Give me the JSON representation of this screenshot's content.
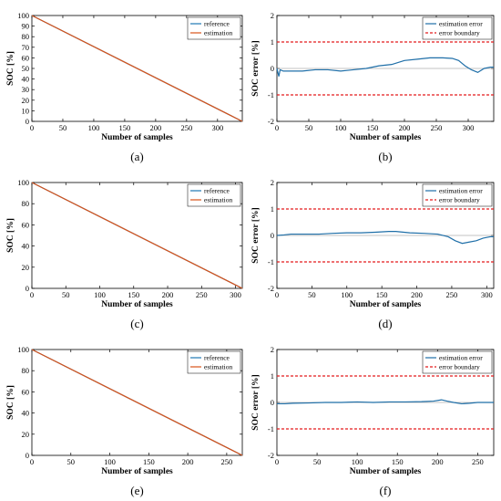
{
  "colors": {
    "reference": "#1f77b4",
    "estimation": "#d95319",
    "error": "#1f6fa8",
    "boundary": "#e31a1c"
  },
  "chart_data": [
    {
      "type": "line",
      "panel_label": "(a)",
      "xlabel": "Number of samples",
      "ylabel": "SOC [%]",
      "xlim": [
        0,
        340
      ],
      "ylim": [
        0,
        100
      ],
      "xticks": [
        0,
        50,
        100,
        150,
        200,
        250,
        300
      ],
      "yticks": [
        0,
        10,
        20,
        30,
        40,
        50,
        60,
        70,
        80,
        90,
        100
      ],
      "legend_position": "top-right",
      "series": [
        {
          "name": "reference",
          "color_key": "reference",
          "x": [
            0,
            340
          ],
          "y": [
            100,
            0
          ]
        },
        {
          "name": "estimation",
          "color_key": "estimation",
          "x": [
            0,
            340
          ],
          "y": [
            100,
            0
          ]
        }
      ]
    },
    {
      "type": "line",
      "panel_label": "(b)",
      "xlabel": "Number of samples",
      "ylabel": "SOC error [%]",
      "xlim": [
        0,
        340
      ],
      "ylim": [
        -2,
        2
      ],
      "xticks": [
        0,
        50,
        100,
        150,
        200,
        250,
        300
      ],
      "yticks": [
        -2,
        -1,
        0,
        1,
        2
      ],
      "legend_position": "top-right",
      "series": [
        {
          "name": "estimation error",
          "color_key": "error",
          "x": [
            0,
            3,
            5,
            10,
            20,
            40,
            60,
            80,
            100,
            120,
            140,
            160,
            180,
            200,
            220,
            240,
            260,
            275,
            285,
            295,
            305,
            315,
            325,
            335,
            340
          ],
          "y": [
            0,
            -0.3,
            -0.05,
            -0.1,
            -0.1,
            -0.1,
            -0.05,
            -0.05,
            -0.1,
            -0.05,
            0,
            0.1,
            0.15,
            0.3,
            0.35,
            0.4,
            0.4,
            0.38,
            0.3,
            0.1,
            -0.05,
            -0.15,
            0,
            0.05,
            0.05
          ]
        },
        {
          "name": "error boundary",
          "color_key": "boundary",
          "dashed": true,
          "x": [
            0,
            340
          ],
          "y": [
            1,
            1
          ]
        },
        {
          "name": "error boundary",
          "color_key": "boundary",
          "dashed": true,
          "x": [
            0,
            340
          ],
          "y": [
            -1,
            -1
          ]
        }
      ]
    },
    {
      "type": "line",
      "panel_label": "(c)",
      "xlabel": "Number of samples",
      "ylabel": "SOC [%]",
      "xlim": [
        0,
        310
      ],
      "ylim": [
        0,
        100
      ],
      "xticks": [
        0,
        50,
        100,
        150,
        200,
        250,
        300
      ],
      "yticks": [
        0,
        20,
        40,
        60,
        80,
        100
      ],
      "legend_position": "top-right",
      "series": [
        {
          "name": "reference",
          "color_key": "reference",
          "x": [
            0,
            310
          ],
          "y": [
            100,
            0
          ]
        },
        {
          "name": "estimation",
          "color_key": "estimation",
          "x": [
            0,
            310
          ],
          "y": [
            100,
            0
          ]
        }
      ]
    },
    {
      "type": "line",
      "panel_label": "(d)",
      "xlabel": "Number of samples",
      "ylabel": "SOC error [%]",
      "xlim": [
        0,
        310
      ],
      "ylim": [
        -2,
        2
      ],
      "xticks": [
        0,
        50,
        100,
        150,
        200,
        250,
        300
      ],
      "yticks": [
        -2,
        -1,
        0,
        1,
        2
      ],
      "legend_position": "top-right",
      "series": [
        {
          "name": "estimation error",
          "color_key": "error",
          "x": [
            0,
            10,
            20,
            40,
            60,
            80,
            100,
            120,
            140,
            160,
            170,
            190,
            210,
            230,
            245,
            255,
            265,
            275,
            285,
            295,
            305,
            310
          ],
          "y": [
            0,
            0.02,
            0.05,
            0.05,
            0.05,
            0.08,
            0.1,
            0.1,
            0.12,
            0.15,
            0.15,
            0.1,
            0.08,
            0.05,
            -0.05,
            -0.2,
            -0.3,
            -0.25,
            -0.2,
            -0.1,
            -0.05,
            -0.05
          ]
        },
        {
          "name": "error boundary",
          "color_key": "boundary",
          "dashed": true,
          "x": [
            0,
            310
          ],
          "y": [
            1,
            1
          ]
        },
        {
          "name": "error boundary",
          "color_key": "boundary",
          "dashed": true,
          "x": [
            0,
            310
          ],
          "y": [
            -1,
            -1
          ]
        }
      ]
    },
    {
      "type": "line",
      "panel_label": "(e)",
      "xlabel": "Number of samples",
      "ylabel": "SOC [%]",
      "xlim": [
        0,
        270
      ],
      "ylim": [
        0,
        100
      ],
      "xticks": [
        0,
        50,
        100,
        150,
        200,
        250
      ],
      "yticks": [
        0,
        20,
        40,
        60,
        80,
        100
      ],
      "legend_position": "top-right",
      "series": [
        {
          "name": "reference",
          "color_key": "reference",
          "x": [
            0,
            270
          ],
          "y": [
            100,
            0
          ]
        },
        {
          "name": "estimation",
          "color_key": "estimation",
          "x": [
            0,
            270
          ],
          "y": [
            100,
            0
          ]
        }
      ]
    },
    {
      "type": "line",
      "panel_label": "(f)",
      "xlabel": "Number of samples",
      "ylabel": "SOC error [%]",
      "xlim": [
        0,
        270
      ],
      "ylim": [
        -2,
        2
      ],
      "xticks": [
        0,
        50,
        100,
        150,
        200,
        250
      ],
      "yticks": [
        -2,
        -1,
        0,
        1,
        2
      ],
      "legend_position": "top-right",
      "series": [
        {
          "name": "estimation error",
          "color_key": "error",
          "x": [
            0,
            10,
            20,
            40,
            60,
            80,
            100,
            120,
            140,
            160,
            180,
            195,
            205,
            212,
            220,
            230,
            240,
            250,
            260,
            270
          ],
          "y": [
            -0.05,
            -0.05,
            -0.03,
            -0.02,
            0,
            0,
            0.02,
            0,
            0.02,
            0.02,
            0.03,
            0.05,
            0.1,
            0.05,
            0,
            -0.05,
            -0.03,
            0,
            0,
            0
          ]
        },
        {
          "name": "error boundary",
          "color_key": "boundary",
          "dashed": true,
          "x": [
            0,
            270
          ],
          "y": [
            1,
            1
          ]
        },
        {
          "name": "error boundary",
          "color_key": "boundary",
          "dashed": true,
          "x": [
            0,
            270
          ],
          "y": [
            -1,
            -1
          ]
        }
      ]
    }
  ]
}
